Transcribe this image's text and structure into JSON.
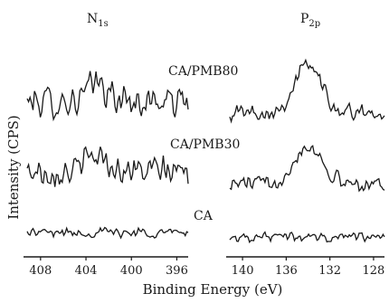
{
  "chart_data": [
    {
      "type": "line",
      "panel_title": "N",
      "panel_title_sub": "1s",
      "xlabel": "Binding Energy (eV)",
      "ylabel": "Intensity (CPS)",
      "xlim": [
        409.5,
        395
      ],
      "x_ticks": [
        "408",
        "404",
        "400",
        "396"
      ],
      "x_tick_values": [
        408,
        404,
        400,
        396
      ],
      "series": [
        {
          "name": "CA/PMB80",
          "peak_center": 403.0,
          "peak_width": 0.8,
          "peak_height": 0.9,
          "noise": 1.0
        },
        {
          "name": "CA/PMB30",
          "peak_center": 403.0,
          "peak_width": 0.9,
          "peak_height": 0.8,
          "noise": 0.9
        },
        {
          "name": "CA",
          "peak_center": 403.0,
          "peak_width": 1.0,
          "peak_height": 0.0,
          "noise": 0.7
        }
      ]
    },
    {
      "type": "line",
      "panel_title": "P",
      "panel_title_sub": "2p",
      "xlabel": "Binding Energy (eV)",
      "ylabel": "Intensity (CPS)",
      "xlim": [
        141.5,
        127
      ],
      "x_ticks": [
        "140",
        "136",
        "132",
        "128"
      ],
      "x_tick_values": [
        140,
        136,
        132,
        128
      ],
      "series": [
        {
          "name": "CA/PMB80",
          "peak_center": 134.0,
          "peak_width": 1.2,
          "peak_height": 2.4,
          "noise": 0.5
        },
        {
          "name": "CA/PMB30",
          "peak_center": 134.0,
          "peak_width": 1.3,
          "peak_height": 1.9,
          "noise": 0.5
        },
        {
          "name": "CA",
          "peak_center": 134.0,
          "peak_width": 1.3,
          "peak_height": 0.0,
          "noise": 0.7
        }
      ]
    }
  ],
  "sample_labels": [
    "CA/PMB80",
    "CA/PMB30",
    "CA"
  ],
  "axis_title": "Binding Energy (eV)",
  "y_axis_title": "Intensity (CPS)",
  "line_color": "#1a1a1a"
}
